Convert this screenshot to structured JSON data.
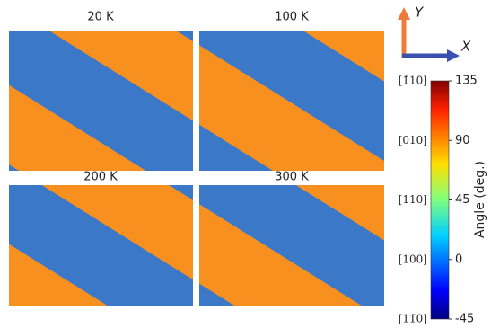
{
  "panels": [
    {
      "title": "20 K"
    },
    {
      "title": "100 K"
    },
    {
      "title": "200 K"
    },
    {
      "title": "300 K"
    }
  ],
  "axes": {
    "y": "Y",
    "x": "X"
  },
  "colorbar": {
    "label": "Angle (deg.)",
    "lim": [
      -45,
      135
    ],
    "ticks": [
      135,
      90,
      45,
      0,
      -45
    ],
    "directions": [
      "[1̄10]",
      "[010]",
      "[110]",
      "[100]",
      "[11̄0]"
    ]
  }
}
